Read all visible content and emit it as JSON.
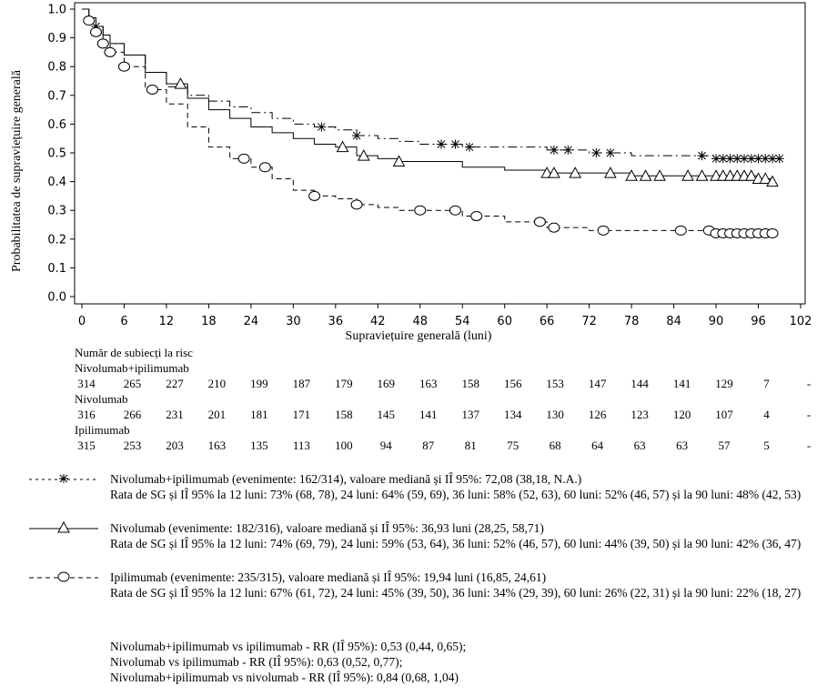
{
  "chart_data": {
    "type": "line",
    "title": "",
    "xlabel": "Supraviețuire generală (luni)",
    "ylabel": "Probabilitatea de supraviețuire generală",
    "xlim": [
      0,
      102
    ],
    "ylim": [
      0,
      1
    ],
    "xticks": [
      0,
      6,
      12,
      18,
      24,
      30,
      36,
      42,
      48,
      54,
      60,
      66,
      72,
      78,
      84,
      90,
      96,
      102
    ],
    "yticks": [
      "0.0",
      "0.1",
      "0.2",
      "0.3",
      "0.4",
      "0.5",
      "0.6",
      "0.7",
      "0.8",
      "0.9",
      "1.0"
    ],
    "grid": false,
    "series": [
      {
        "name": "Nivolumab+ipilimumab",
        "marker": "asterisk",
        "dash": "dashdot",
        "x": [
          0,
          1,
          2,
          3,
          4,
          6,
          9,
          12,
          15,
          18,
          21,
          24,
          27,
          30,
          33,
          36,
          39,
          42,
          45,
          48,
          54,
          60,
          66,
          72,
          78,
          84,
          90,
          96,
          99
        ],
        "y": [
          1.0,
          0.97,
          0.94,
          0.91,
          0.88,
          0.84,
          0.78,
          0.73,
          0.7,
          0.68,
          0.66,
          0.64,
          0.62,
          0.6,
          0.59,
          0.58,
          0.56,
          0.55,
          0.54,
          0.53,
          0.52,
          0.52,
          0.51,
          0.5,
          0.49,
          0.49,
          0.48,
          0.48,
          0.48
        ],
        "censor_x": [
          2,
          34,
          39,
          51,
          53,
          55,
          67,
          69,
          73,
          75,
          88,
          90,
          91,
          92,
          93,
          94,
          95,
          96,
          97,
          98,
          99
        ]
      },
      {
        "name": "Nivolumab",
        "marker": "triangle",
        "dash": "solid",
        "x": [
          0,
          1,
          2,
          3,
          4,
          6,
          9,
          12,
          15,
          18,
          21,
          24,
          27,
          30,
          33,
          36,
          39,
          42,
          45,
          48,
          54,
          60,
          66,
          72,
          78,
          84,
          90,
          96,
          98
        ],
        "y": [
          1.0,
          0.97,
          0.94,
          0.91,
          0.88,
          0.84,
          0.78,
          0.74,
          0.69,
          0.65,
          0.62,
          0.59,
          0.57,
          0.55,
          0.53,
          0.52,
          0.49,
          0.48,
          0.47,
          0.47,
          0.45,
          0.44,
          0.43,
          0.43,
          0.42,
          0.42,
          0.42,
          0.41,
          0.4
        ],
        "censor_x": [
          14,
          37,
          40,
          45,
          66,
          67,
          70,
          75,
          78,
          80,
          82,
          86,
          88,
          90,
          91,
          92,
          93,
          94,
          95,
          96,
          97,
          98
        ]
      },
      {
        "name": "Ipilimumab",
        "marker": "circle",
        "dash": "dashed",
        "x": [
          0,
          1,
          2,
          3,
          4,
          6,
          9,
          12,
          15,
          18,
          21,
          24,
          27,
          30,
          33,
          36,
          39,
          42,
          45,
          48,
          54,
          60,
          66,
          72,
          78,
          84,
          90,
          96,
          98
        ],
        "y": [
          1.0,
          0.96,
          0.92,
          0.88,
          0.85,
          0.8,
          0.72,
          0.67,
          0.59,
          0.52,
          0.48,
          0.45,
          0.41,
          0.37,
          0.35,
          0.34,
          0.32,
          0.31,
          0.3,
          0.3,
          0.28,
          0.26,
          0.24,
          0.23,
          0.23,
          0.23,
          0.22,
          0.22,
          0.22
        ],
        "censor_x": [
          1,
          2,
          3,
          4,
          6,
          10,
          23,
          26,
          33,
          39,
          48,
          53,
          56,
          65,
          67,
          74,
          85,
          89,
          90,
          91,
          92,
          93,
          94,
          95,
          96,
          97,
          98
        ]
      }
    ]
  },
  "risk_table": {
    "header": "Număr de subiecți la risc",
    "groups": [
      {
        "name": "Nivolumab+ipilimumab",
        "values": [
          "314",
          "265",
          "227",
          "210",
          "199",
          "187",
          "179",
          "169",
          "163",
          "158",
          "156",
          "153",
          "147",
          "144",
          "141",
          "129",
          "7",
          "-"
        ]
      },
      {
        "name": "Nivolumab",
        "values": [
          "316",
          "266",
          "231",
          "201",
          "181",
          "171",
          "158",
          "145",
          "141",
          "137",
          "134",
          "130",
          "126",
          "123",
          "120",
          "107",
          "4",
          "-"
        ]
      },
      {
        "name": "Ipilimumab",
        "values": [
          "315",
          "253",
          "203",
          "163",
          "135",
          "113",
          "100",
          "94",
          "87",
          "81",
          "75",
          "68",
          "64",
          "63",
          "63",
          "57",
          "5",
          "-"
        ]
      }
    ]
  },
  "legend": [
    {
      "marker": "asterisk",
      "line1": "Nivolumab+ipilimumab (evenimente: 162/314), valoare mediană și IÎ 95%: 72,08 (38,18, N.A.)",
      "line2": "Rata de SG și IÎ 95% la 12 luni: 73% (68, 78), 24 luni: 64% (59, 69), 36 luni: 58% (52, 63), 60 luni: 52% (46, 57) și la 90 luni: 48% (42, 53)"
    },
    {
      "marker": "triangle",
      "line1": "Nivolumab (evenimente: 182/316), valoare mediană și IÎ 95%: 36,93 luni (28,25, 58,71)",
      "line2": "Rata de SG și IÎ 95% la 12 luni: 74% (69, 79), 24 luni: 59% (53, 64), 36 luni: 52% (46, 57), 60 luni: 44% (39, 50) și la 90 luni: 42% (36, 47)"
    },
    {
      "marker": "circle",
      "line1": "Ipilimumab (evenimente: 235/315), valoare mediană și IÎ 95%: 19,94 luni (16,85, 24,61)",
      "line2": "Rata de SG și IÎ 95% la 12 luni: 67% (61, 72), 24 luni: 45% (39, 50), 36 luni: 34% (29, 39), 60 luni: 26% (22, 31) și la 90 luni: 22% (18, 27)"
    }
  ],
  "hazard_ratios": [
    "Nivolumab+ipilimumab vs ipilimumab - RR (IÎ 95%): 0,53 (0,44, 0,65);",
    "Nivolumab vs ipilimumab - RR (IÎ 95%): 0,63 (0,52, 0,77);",
    "Nivolumab+ipilimumab vs nivolumab - RR (IÎ 95%): 0,84 (0,68, 1,04)"
  ]
}
